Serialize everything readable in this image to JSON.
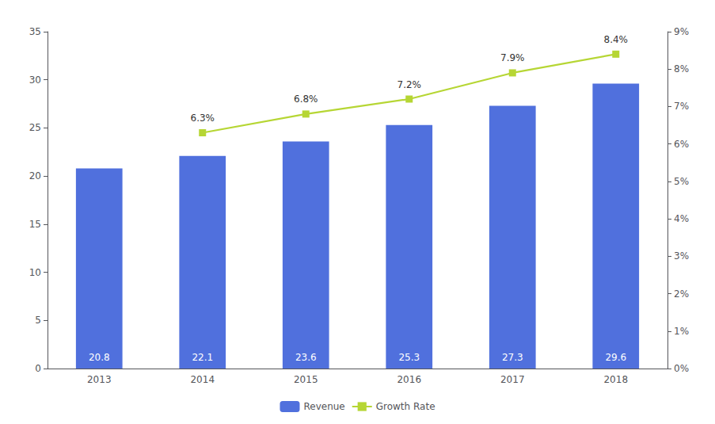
{
  "chart_data": {
    "type": "bar",
    "categories": [
      "2013",
      "2014",
      "2015",
      "2016",
      "2017",
      "2018"
    ],
    "series": [
      {
        "name": "Revenue",
        "type": "bar",
        "values": [
          20.8,
          22.1,
          23.6,
          25.3,
          27.3,
          29.6
        ],
        "data_labels": true
      },
      {
        "name": "Growth Rate",
        "type": "line",
        "axis": "y2",
        "marker": "square",
        "values": [
          null,
          6.3,
          6.8,
          7.2,
          7.9,
          8.4
        ],
        "value_labels": [
          null,
          "6.3%",
          "6.8%",
          "7.2%",
          "7.9%",
          "8.4%"
        ],
        "data_labels": true
      }
    ],
    "ylim": [
      0,
      35
    ],
    "yticks": [
      0,
      5,
      10,
      15,
      20,
      25,
      30,
      35
    ],
    "y2lim": [
      0,
      9
    ],
    "y2ticks": [
      {
        "value": 0,
        "label": "0%"
      },
      {
        "value": 1,
        "label": "1%"
      },
      {
        "value": 2,
        "label": "2%"
      },
      {
        "value": 3,
        "label": "3%"
      },
      {
        "value": 4,
        "label": "4%"
      },
      {
        "value": 5,
        "label": "5%"
      },
      {
        "value": 6,
        "label": "6%"
      },
      {
        "value": 7,
        "label": "7%"
      },
      {
        "value": 8,
        "label": "8%"
      },
      {
        "value": 9,
        "label": "9%"
      }
    ],
    "grid": false,
    "legend": "bottom"
  }
}
